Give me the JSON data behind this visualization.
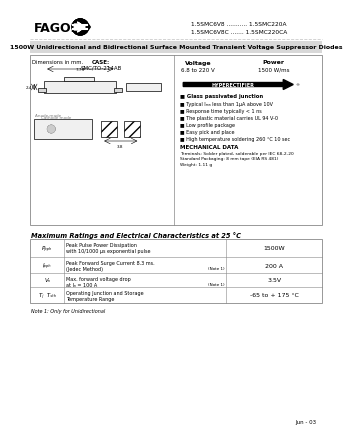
{
  "bg_color": "#ffffff",
  "title_text": "1500W Unidirectional and Bidirectional Surface Mounted Transient Voltage Suppressor Diodes",
  "header_line1": "1.5SMC6V8 ........... 1.5SMC220A",
  "header_line2": "1.5SMC6V8C ....... 1.5SMC220CA",
  "company": "FAGOR",
  "features_bold": "Glass passivated junction",
  "features": [
    "Typical Iₘₙ less than 1μA above 10V",
    "Response time typically < 1 ns",
    "The plastic material carries UL 94 V-0",
    "Low profile package",
    "Easy pick and place",
    "High temperature soldering 260 °C 10 sec"
  ],
  "mech_title": "MECHANICAL DATA",
  "mech_lines": [
    "Terminals: Solder plated, solderable per IEC 68-2-20",
    "Standard Packaging: 8 mm tape (EIA RS 481)",
    "Weight: 1.11 g"
  ],
  "table_title": "Maximum Ratings and Electrical Characteristics at 25 °C",
  "table_rows": [
    {
      "symbol": "Pₚₚₕ",
      "desc1": "Peak Pulse Power Dissipation",
      "desc2": "with 10/1000 μs exponential pulse",
      "value": "1500W",
      "note": ""
    },
    {
      "symbol": "Iₚₚₕ",
      "desc1": "Peak Forward Surge Current 8.3 ms.",
      "desc2": "(Jedec Method)",
      "value": "200 A",
      "note": "(Note 1)"
    },
    {
      "symbol": "Vₙ",
      "desc1": "Max. forward voltage drop",
      "desc2": "at Iₙ = 100 A",
      "value": "3.5V",
      "note": "(Note 1)"
    },
    {
      "symbol": "Tⱼ  Tₛₜₕ",
      "desc1": "Operating Junction and Storage",
      "desc2": "Temperature Range",
      "value": "-65 to + 175 °C",
      "note": ""
    }
  ],
  "note_text": "Note 1: Only for Unidirectional",
  "date_text": "Jun - 03",
  "voltage_val": "6.8 to 220 V",
  "power_val": "1500 W/ms",
  "case_val": "SMC/TO-214AB"
}
